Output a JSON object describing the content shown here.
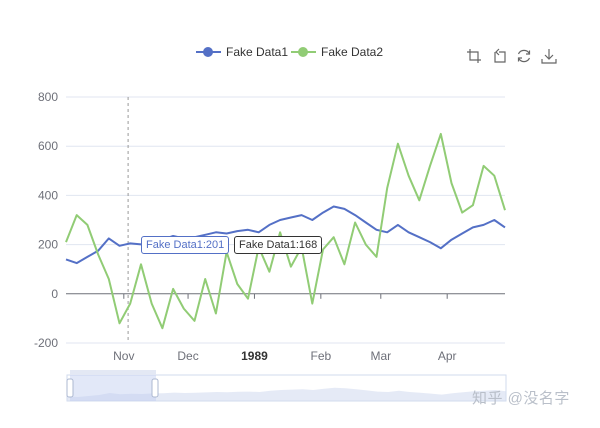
{
  "legend": {
    "items": [
      {
        "label": "Fake Data1",
        "color": "#5470c6"
      },
      {
        "label": "Fake Data2",
        "color": "#91cc75"
      }
    ]
  },
  "toolbox": {
    "icons": [
      "zoom-area-icon",
      "zoom-reset-icon",
      "restore-icon",
      "save-image-icon"
    ]
  },
  "tooltips": [
    {
      "text": "Fake Data1:201"
    },
    {
      "text": "Fake Data1:168"
    }
  ],
  "watermark": "知乎 @没名字",
  "chart_data": {
    "type": "line",
    "title": "",
    "xlabel": "",
    "ylabel": "",
    "x_type": "time",
    "xlim": [
      "1988-10-05",
      "1989-04-28"
    ],
    "ylim": [
      -200,
      800
    ],
    "y_ticks": [
      -200,
      0,
      200,
      400,
      600,
      800
    ],
    "x_ticks": [
      {
        "date": "1988-11-01",
        "label": "Nov",
        "bold": false
      },
      {
        "date": "1988-12-01",
        "label": "Dec",
        "bold": false
      },
      {
        "date": "1989-01-01",
        "label": "1989",
        "bold": true
      },
      {
        "date": "1989-02-01",
        "label": "Feb",
        "bold": false
      },
      {
        "date": "1989-03-01",
        "label": "Mar",
        "bold": false
      },
      {
        "date": "1989-04-01",
        "label": "Apr",
        "bold": false
      }
    ],
    "grid": true,
    "legend_position": "top-center",
    "crosshair_date": "1988-11-03",
    "series": [
      {
        "name": "Fake Data1",
        "color": "#5470c6",
        "x": [
          "1988-10-05",
          "1988-10-10",
          "1988-10-15",
          "1988-10-20",
          "1988-10-25",
          "1988-10-30",
          "1988-11-04",
          "1988-11-09",
          "1988-11-14",
          "1988-11-19",
          "1988-11-24",
          "1988-11-29",
          "1988-12-04",
          "1988-12-09",
          "1988-12-14",
          "1988-12-19",
          "1988-12-24",
          "1988-12-29",
          "1989-01-03",
          "1989-01-08",
          "1989-01-13",
          "1989-01-18",
          "1989-01-23",
          "1989-01-28",
          "1989-02-02",
          "1989-02-07",
          "1989-02-12",
          "1989-02-17",
          "1989-02-22",
          "1989-02-27",
          "1989-03-04",
          "1989-03-09",
          "1989-03-14",
          "1989-03-19",
          "1989-03-24",
          "1989-03-29",
          "1989-04-03",
          "1989-04-08",
          "1989-04-13",
          "1989-04-18",
          "1989-04-23",
          "1989-04-28"
        ],
        "values": [
          140,
          125,
          150,
          175,
          225,
          195,
          205,
          201,
          215,
          220,
          235,
          225,
          230,
          240,
          250,
          245,
          255,
          260,
          250,
          280,
          300,
          310,
          320,
          300,
          330,
          355,
          345,
          320,
          290,
          260,
          250,
          280,
          250,
          230,
          210,
          185,
          220,
          245,
          270,
          280,
          300,
          270
        ]
      },
      {
        "name": "Fake Data2",
        "color": "#91cc75",
        "x": [
          "1988-10-05",
          "1988-10-10",
          "1988-10-15",
          "1988-10-20",
          "1988-10-25",
          "1988-10-30",
          "1988-11-04",
          "1988-11-09",
          "1988-11-14",
          "1988-11-19",
          "1988-11-24",
          "1988-11-29",
          "1988-12-04",
          "1988-12-09",
          "1988-12-14",
          "1988-12-19",
          "1988-12-24",
          "1988-12-29",
          "1989-01-03",
          "1989-01-08",
          "1989-01-13",
          "1989-01-18",
          "1989-01-23",
          "1989-01-28",
          "1989-02-02",
          "1989-02-07",
          "1989-02-12",
          "1989-02-17",
          "1989-02-22",
          "1989-02-27",
          "1989-03-04",
          "1989-03-09",
          "1989-03-14",
          "1989-03-19",
          "1989-03-24",
          "1989-03-29",
          "1989-04-03",
          "1989-04-08",
          "1989-04-13",
          "1989-04-18",
          "1989-04-23",
          "1989-04-28"
        ],
        "values": [
          210,
          320,
          280,
          160,
          60,
          -120,
          -40,
          120,
          -40,
          -140,
          20,
          -60,
          -110,
          60,
          -80,
          170,
          40,
          -20,
          190,
          90,
          250,
          110,
          190,
          -40,
          180,
          230,
          120,
          290,
          200,
          150,
          430,
          610,
          480,
          380,
          520,
          650,
          450,
          330,
          360,
          520,
          480,
          340
        ]
      }
    ]
  }
}
